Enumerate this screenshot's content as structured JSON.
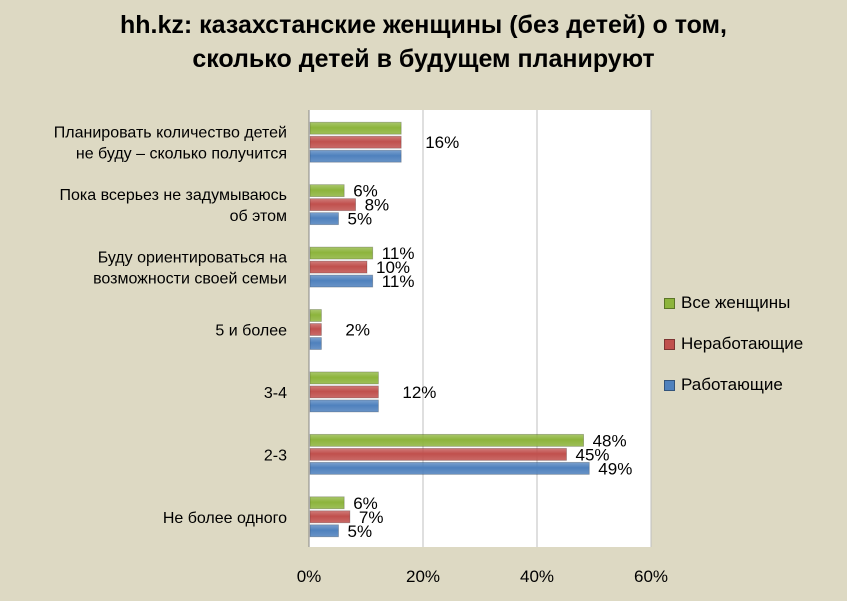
{
  "title_line1": "hh.kz: казахстанские  женщины (без детей) о том,",
  "title_line2": "сколько детей в будущем планируют",
  "colors": {
    "all": "#8db43c",
    "nonworking": "#c0504d",
    "working": "#4f81bd"
  },
  "chart_data": {
    "type": "bar",
    "orientation": "horizontal",
    "categories": [
      [
        "Планировать количество детей",
        "не буду – сколько получится"
      ],
      [
        "Пока всерьез не задумываюсь",
        "об этом"
      ],
      [
        "Буду ориентироваться на",
        "возможности своей семьи"
      ],
      [
        "5 и более"
      ],
      [
        "3-4"
      ],
      [
        "2-3"
      ],
      [
        "Не более одного"
      ]
    ],
    "series": [
      {
        "name": "Все женщины",
        "key": "all",
        "values": [
          16,
          6,
          11,
          2,
          12,
          48,
          6
        ]
      },
      {
        "name": "Неработающие",
        "key": "nonworking",
        "values": [
          16,
          8,
          10,
          2,
          12,
          45,
          7
        ]
      },
      {
        "name": "Работающие",
        "key": "working",
        "values": [
          16,
          5,
          11,
          2,
          12,
          49,
          5
        ]
      }
    ],
    "data_labels": [
      [
        "16%"
      ],
      [
        "6%",
        "8%",
        "5%"
      ],
      [
        "11%",
        "10%",
        "11%"
      ],
      [
        "2%"
      ],
      [
        "12%"
      ],
      [
        "48%",
        "45%",
        "49%"
      ],
      [
        "6%",
        "7%",
        "5%"
      ]
    ],
    "xticks": [
      "0%",
      "20%",
      "40%",
      "60%"
    ],
    "xlim": [
      0,
      60
    ],
    "grid": "vertical",
    "legend_position": "right"
  },
  "legend": [
    {
      "label": "Все женщины",
      "key": "all"
    },
    {
      "label": "Неработающие",
      "key": "nonworking"
    },
    {
      "label": "Работающие",
      "key": "working"
    }
  ]
}
